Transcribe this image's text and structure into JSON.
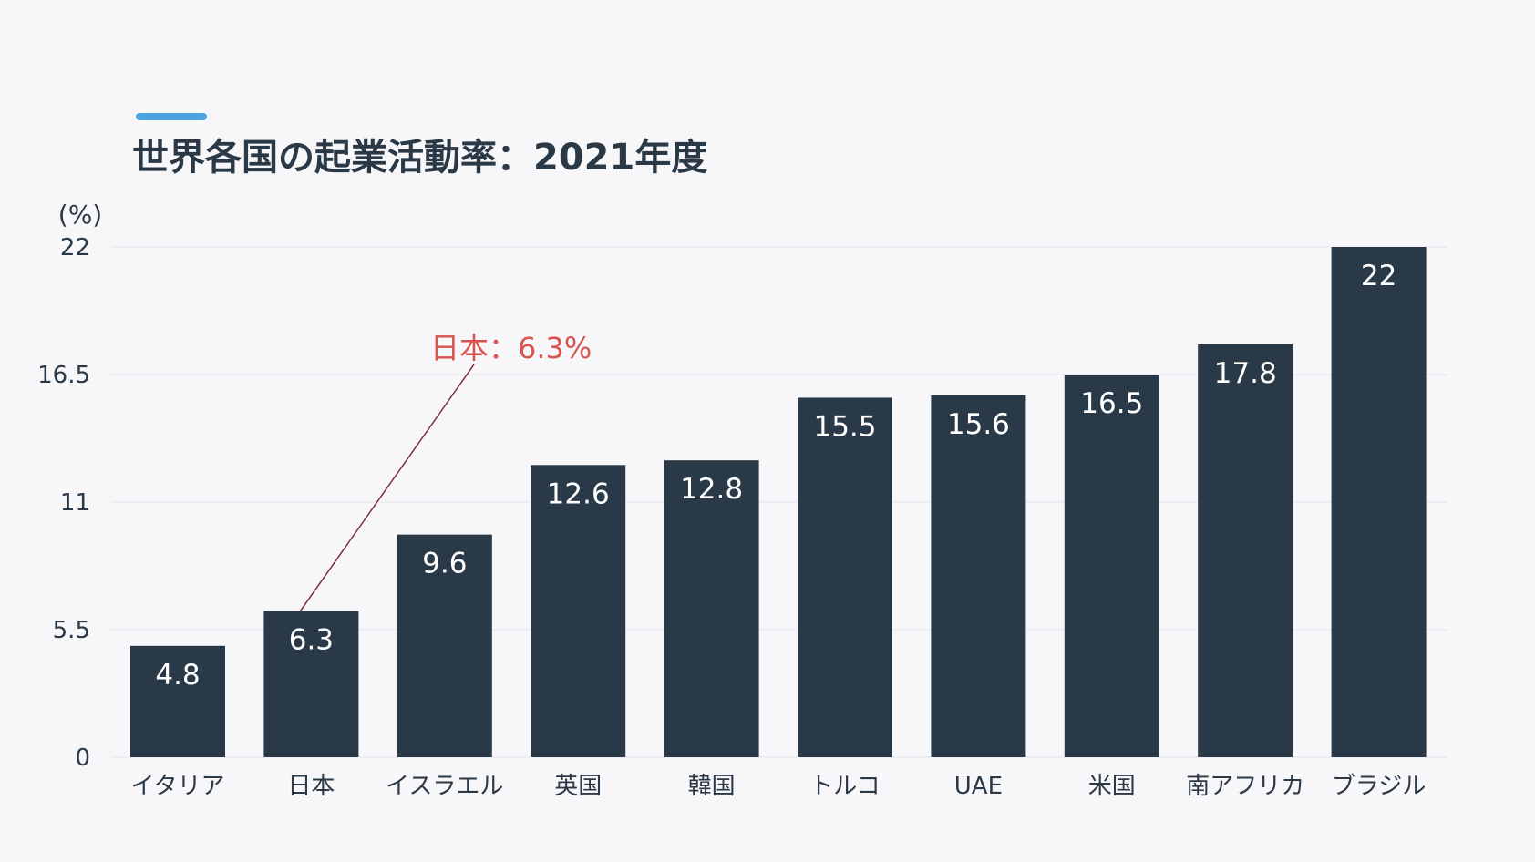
{
  "colors": {
    "background": "#f7f7fa",
    "bar": "#2a3947",
    "accent": "#4ba3df",
    "annotation": "#d9534f",
    "annotation_line": "#7a2f3a",
    "grid": "#e6e6ea",
    "text": "#2b3947"
  },
  "chart_data": {
    "type": "bar",
    "title": "世界各国の起業活動率：2021年度",
    "ylabel": "(%)",
    "xlabel": "",
    "categories": [
      "イタリア",
      "日本",
      "イスラエル",
      "英国",
      "韓国",
      "トルコ",
      "UAE",
      "米国",
      "南アフリカ",
      "ブラジル"
    ],
    "values": [
      4.8,
      6.3,
      9.6,
      12.6,
      12.8,
      15.5,
      15.6,
      16.5,
      17.8,
      22
    ],
    "value_labels": [
      "4.8",
      "6.3",
      "9.6",
      "12.6",
      "12.8",
      "15.5",
      "15.6",
      "16.5",
      "17.8",
      "22"
    ],
    "ylim": [
      0,
      22
    ],
    "yticks": [
      0,
      5.5,
      11,
      16.5,
      22
    ],
    "ytick_labels": [
      "0",
      "5.5",
      "11",
      "16.5",
      "22"
    ],
    "grid": true,
    "annotation": {
      "text": "日本：6.3%",
      "category_index": 1
    }
  }
}
